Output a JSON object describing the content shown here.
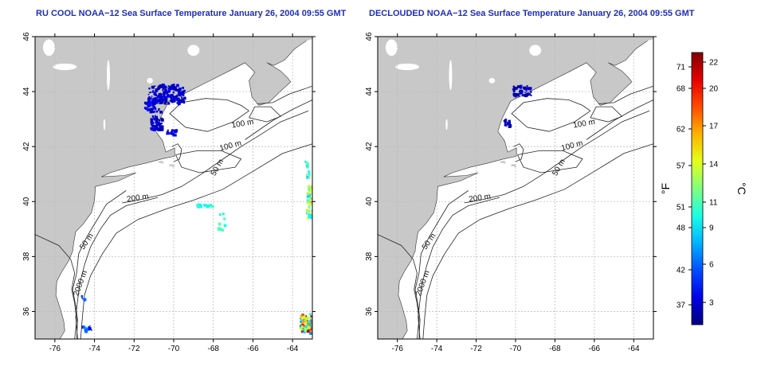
{
  "maps": [
    {
      "title": "RU COOL NOAA−12 Sea Surface Temperature January 26, 2004 09:55 GMT",
      "x_ticks": [
        "-76",
        "-74",
        "-72",
        "-70",
        "-68",
        "-66",
        "-64"
      ],
      "y_ticks": [
        "36",
        "38",
        "40",
        "42",
        "44",
        "46"
      ],
      "contour_labels": [
        "100 m",
        "100 m",
        "50 m",
        "200 m",
        "50 m",
        "2000 m"
      ]
    },
    {
      "title": "DECLOUDED NOAA−12 Sea Surface Temperature January 26, 2004 09:55 GMT",
      "x_ticks": [
        "-76",
        "-74",
        "-72",
        "-70",
        "-68",
        "-66",
        "-64"
      ],
      "y_ticks": [
        "36",
        "38",
        "40",
        "42",
        "44",
        "46"
      ],
      "contour_labels": [
        "100 m",
        "100 m",
        "50 m",
        "200 m",
        "50 m",
        "2000 m"
      ]
    }
  ],
  "colorbar": {
    "fahrenheit_unit": "°F",
    "celsius_unit": "°C",
    "fahrenheit_ticks": [
      "71",
      "68",
      "62",
      "57",
      "51",
      "48",
      "42",
      "37"
    ],
    "celsius_ticks": [
      "22",
      "20",
      "17",
      "14",
      "11",
      "9",
      "6",
      "3"
    ]
  },
  "colors": {
    "title": "#1f2fb8",
    "land": "#c8c8c8",
    "water": "#ffffff",
    "sst_low": "#0000c8",
    "sst_high": "#b40000"
  }
}
